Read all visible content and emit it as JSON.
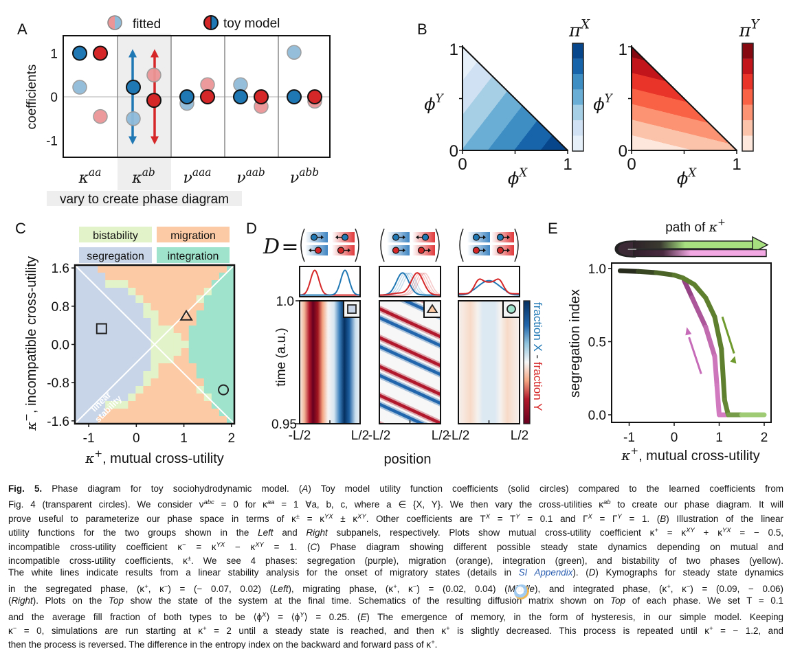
{
  "panels": {
    "A": {
      "label": "A",
      "legend": {
        "fitted": "fitted",
        "toy": "toy model"
      },
      "note": "vary to create phase diagram"
    },
    "B": {
      "label": "B",
      "left": {
        "colorbar_label": {
          "base": "π",
          "sup": "X"
        },
        "xlabel": {
          "base": "ϕ",
          "sup": "X"
        },
        "ylabel": {
          "base": "ϕ",
          "sup": "Y"
        },
        "xticks": [
          "0",
          "1"
        ],
        "yticks": [
          "0",
          "1"
        ]
      },
      "right": {
        "colorbar_label": {
          "base": "π",
          "sup": "Y"
        },
        "xlabel": {
          "base": "ϕ",
          "sup": "X"
        },
        "ylabel": {
          "base": "ϕ",
          "sup": "Y"
        },
        "xticks": [
          "0",
          "1"
        ],
        "yticks": [
          "0",
          "1"
        ]
      },
      "mutual_cross_utility": -0.5,
      "incompatible_cross_utility": 1
    },
    "C": {
      "label": "C"
    },
    "D": {
      "label": "D",
      "equation_lhs": "D",
      "equation_eq": "=",
      "yticks": [
        "1.0",
        "0.95"
      ],
      "ylabel": "time (a.u.)",
      "xticks": [
        "-L/2",
        "L/2"
      ],
      "xlabel": "position",
      "colorbar_label": {
        "x": "fraction X",
        "sep": " - ",
        "y": "fraction Y"
      },
      "matrices": [
        {
          "phase": "segregation",
          "marker": "square",
          "arrows": [
            [
              "X",
              "right"
            ],
            [
              "X",
              "left"
            ],
            [
              "Y",
              "left"
            ],
            [
              "Y",
              "right"
            ]
          ]
        },
        {
          "phase": "migration",
          "marker": "triangle",
          "arrows": [
            [
              "X",
              "right"
            ],
            [
              "X",
              "left"
            ],
            [
              "Y",
              "right"
            ],
            [
              "Y",
              "right"
            ]
          ]
        },
        {
          "phase": "integration",
          "marker": "circle",
          "arrows": [
            [
              "X",
              "right"
            ],
            [
              "X",
              "right"
            ],
            [
              "Y",
              "right"
            ],
            [
              "Y",
              "right"
            ]
          ]
        }
      ]
    },
    "E": {
      "label": "E",
      "banner": {
        "text": "path of ",
        "base": "κ",
        "sup": "+"
      }
    }
  },
  "colors": {
    "blue": "#1f77b4",
    "red": "#d62728",
    "fitted_blue": "#8fbbd9",
    "fitted_red": "#eb9596",
    "blues": [
      "#e6f0f9",
      "#cfe1f2",
      "#a6cee4",
      "#6aaed6",
      "#3e8ec4",
      "#1764ab",
      "#08468b"
    ],
    "reds": [
      "#fde7dd",
      "#fcc3ab",
      "#fc9474",
      "#f96245",
      "#e83429",
      "#c1151b",
      "#860811"
    ],
    "phases": {
      "segregation": "#c8d5e8",
      "migration": "#fccba6",
      "bistability": "#e3f3c9",
      "integration": "#9fe3cc"
    },
    "forward": "#6f9a2e",
    "backward": "#c66bb8"
  },
  "chart_data": [
    {
      "id": "A",
      "type": "scatter",
      "ylabel": "coefficients",
      "yticks": [
        "1",
        "0",
        "-1"
      ],
      "ylim": [
        -1.4,
        1.4
      ],
      "categories": [
        {
          "base": "κ",
          "sup": "aa"
        },
        {
          "base": "κ",
          "sup": "ab"
        },
        {
          "base": "ν",
          "sup": "aaa"
        },
        {
          "base": "ν",
          "sup": "aab"
        },
        {
          "base": "ν",
          "sup": "abb"
        }
      ],
      "highlighted_category": 1,
      "varied_range": [
        -1,
        1
      ],
      "series": [
        {
          "name": "fitted",
          "group": "X",
          "values": [
            0.22,
            -0.5,
            -0.15,
            0.28,
            1.02
          ]
        },
        {
          "name": "fitted",
          "group": "Y",
          "values": [
            -0.45,
            0.5,
            0.28,
            -0.22,
            -0.1
          ]
        },
        {
          "name": "toy model",
          "group": "X",
          "values": [
            1,
            0.22,
            0,
            0,
            0
          ]
        },
        {
          "name": "toy model",
          "group": "Y",
          "values": [
            1,
            -0.08,
            0,
            0,
            0
          ]
        }
      ]
    },
    {
      "id": "C",
      "type": "heatmap",
      "xlabel": {
        "base": "κ",
        "sup": "+",
        "text": ", mutual cross-utility"
      },
      "ylabel": {
        "base": "κ",
        "sup": "−",
        "text": ", incompatible cross-utility"
      },
      "xticks": [
        "-1",
        "0",
        "1",
        "2"
      ],
      "xtick_values": [
        -1,
        0,
        1,
        2
      ],
      "yticks": [
        "1.6",
        "0.8",
        "0.0",
        "-0.8",
        "-1.6"
      ],
      "ytick_values": [
        1.6,
        0.8,
        0,
        -0.8,
        -1.6
      ],
      "xlim": [
        -1.29,
        2.06
      ],
      "ylim": [
        -1.66,
        1.66
      ],
      "legend": [
        {
          "code": "B",
          "label": "bistability"
        },
        {
          "code": "M",
          "label": "migration"
        },
        {
          "code": "S",
          "label": "segregation"
        },
        {
          "code": "I",
          "label": "integration"
        }
      ],
      "phase_grid": [
        "SSSMMMMMMMMMMMMMMMMMI",
        "SSSSMMMMMMMMMMMMMMMII",
        "SSSSBBBMMMMMMMMMMMIII",
        "SSSSSSSBMMMMMMMMMBIII",
        "SSSSSSSSBMMMMMMMBIIII",
        "SSSSSSSSSBMMMMMMMIIII",
        "SSSSSSSSSBBMMMMMIIIII",
        "SSSSSSSSSSBMMMMMIIIII",
        "SSSSSSSSSSBBBMMIIIIII",
        "SSSSSSSSSSBBBBMIIIIII",
        "SSSSSSSSSSBBBBBIIIIII",
        "SSSSSSSSSSBBBBMIIIIII",
        "SSSSSSSSSSBBBMMIIIIII",
        "SSSSSSSSSSBMMMMMIIIII",
        "SSSSSSSSSBBMMMMMIIIII",
        "SSSSSSSSSBMMMMMMMIIII",
        "SSSSSSSSBMMMMMMMBIIII",
        "SSSSSSSBMMMMMMMMMBIII",
        "SSSSBBBMMMMMMMMMMMIII",
        "SSSSMMMMMMMMMMMMMMMII",
        "SSSMMMMMMMMMMMMMMMMMI"
      ],
      "linear_stability_label": [
        "linear",
        "stability"
      ],
      "markers": [
        {
          "shape": "square",
          "x": -0.73,
          "y": 0.33
        },
        {
          "shape": "triangle",
          "x": 1.05,
          "y": 0.6
        },
        {
          "shape": "circle",
          "x": 1.83,
          "y": -0.95
        }
      ]
    },
    {
      "id": "E",
      "type": "line",
      "xlabel": {
        "base": "κ",
        "sup": "+",
        "text": ", mutual cross-utility"
      },
      "ylabel": "segregation index",
      "xticks": [
        "-1",
        "0",
        "1",
        "2"
      ],
      "xtick_values": [
        -1,
        0,
        1,
        2
      ],
      "yticks": [
        "1.0",
        "0.5",
        "0.0"
      ],
      "ytick_values": [
        1,
        0.5,
        0
      ],
      "xlim": [
        -1.4,
        2.1
      ],
      "ylim": [
        -0.05,
        1.04
      ],
      "series": [
        {
          "color": "forward",
          "x": [
            -1.2,
            -0.8,
            -0.4,
            0,
            0.2,
            0.45,
            0.7,
            0.9,
            1.05,
            1.12,
            1.2,
            1.5,
            2.0
          ],
          "y": [
            0.985,
            0.98,
            0.972,
            0.955,
            0.935,
            0.89,
            0.8,
            0.67,
            0.45,
            0.1,
            0,
            0,
            0
          ]
        },
        {
          "color": "backward",
          "x": [
            0.22,
            0.4,
            0.7,
            0.9,
            0.95,
            1.0,
            1.2
          ],
          "y": [
            0.92,
            0.8,
            0.6,
            0.4,
            0.2,
            0,
            0
          ]
        }
      ]
    }
  ],
  "caption": {
    "lines": [
      [
        {
          "t": "Fig. 5.",
          "s": "b"
        },
        {
          "t": "   Phase diagram for toy sociohydrodynamic model. ("
        },
        {
          "t": "A",
          "s": "i"
        },
        {
          "t": ") Toy model utility function coefficients (solid circles) compared to the learned coefficients from"
        }
      ],
      [
        {
          "t": "Fig. 4 (transparent circles). We consider ν"
        },
        {
          "t": "abc",
          "s": "sup"
        },
        {
          "t": " = 0 for κ"
        },
        {
          "t": "aa",
          "s": "sup"
        },
        {
          "t": " = 1 ∀a, b, c, where a ∈ {X, Y}. We then vary the cross-utilities κ"
        },
        {
          "t": "ab",
          "s": "sup"
        },
        {
          "t": " to create our phase diagram. It will"
        }
      ],
      [
        {
          "t": "prove useful to parameterize our phase space in terms of κ"
        },
        {
          "t": "±",
          "s": "sup"
        },
        {
          "t": " = κ"
        },
        {
          "t": "YX",
          "s": "sup"
        },
        {
          "t": " ± κ"
        },
        {
          "t": "XY",
          "s": "sup"
        },
        {
          "t": ". Other coefficients are T"
        },
        {
          "t": "X",
          "s": "sup"
        },
        {
          "t": " = T"
        },
        {
          "t": "Y",
          "s": "sup"
        },
        {
          "t": " = 0.1 and Γ"
        },
        {
          "t": "X",
          "s": "sup"
        },
        {
          "t": " = Γ"
        },
        {
          "t": "Y",
          "s": "sup"
        },
        {
          "t": " = 1. ("
        },
        {
          "t": "B",
          "s": "i"
        },
        {
          "t": ") Illustration of the linear"
        }
      ],
      [
        {
          "t": "utility functions for the two groups shown in the "
        },
        {
          "t": "Left",
          "s": "i"
        },
        {
          "t": " and "
        },
        {
          "t": "Right",
          "s": "i"
        },
        {
          "t": " subpanels, respectively. Plots show mutual cross-utility coefficient κ"
        },
        {
          "t": "+",
          "s": "sup"
        },
        {
          "t": " = κ"
        },
        {
          "t": "XY",
          "s": "sup"
        },
        {
          "t": " + κ"
        },
        {
          "t": "YX",
          "s": "sup"
        },
        {
          "t": " = − 0.5,"
        }
      ],
      [
        {
          "t": "incompatible cross-utility coefficient κ"
        },
        {
          "t": "−",
          "s": "sup"
        },
        {
          "t": " = κ"
        },
        {
          "t": "YX",
          "s": "sup"
        },
        {
          "t": " − κ"
        },
        {
          "t": "XY",
          "s": "sup"
        },
        {
          "t": " = 1. ("
        },
        {
          "t": "C",
          "s": "i"
        },
        {
          "t": ") Phase diagram showing different possible steady state dynamics depending on mutual and"
        }
      ],
      [
        {
          "t": "incompatible cross-utility coefficients, κ"
        },
        {
          "t": "±",
          "s": "sup"
        },
        {
          "t": ". We see 4 phases: segregation (purple), migration (orange), integration (green), and bistability of two phases (yellow)."
        }
      ],
      [
        {
          "t": "The white lines indicate results from a linear stability analysis for the onset of migratory states (details in "
        },
        {
          "t": "SI Appendix",
          "s": "link"
        },
        {
          "t": "). ("
        },
        {
          "t": "D",
          "s": "i"
        },
        {
          "t": ") Kymographs for steady state dynamics"
        }
      ],
      [
        {
          "t": "in the segregated phase, (κ"
        },
        {
          "t": "+",
          "s": "sup"
        },
        {
          "t": ", κ"
        },
        {
          "t": "−",
          "s": "sup"
        },
        {
          "t": ") = (− 0.07, 0.02) ("
        },
        {
          "t": "Left",
          "s": "i"
        },
        {
          "t": "), migrating phase, (κ"
        },
        {
          "t": "+",
          "s": "sup"
        },
        {
          "t": ", κ"
        },
        {
          "t": "−",
          "s": "sup"
        },
        {
          "t": ") = (0.02, 0.04) ("
        },
        {
          "t": "Middle",
          "s": "i"
        },
        {
          "t": "), and integrated phase, (κ"
        },
        {
          "t": "+",
          "s": "sup"
        },
        {
          "t": ", κ"
        },
        {
          "t": "−",
          "s": "sup"
        },
        {
          "t": ") = (0.09, − 0.06)"
        }
      ],
      [
        {
          "t": "("
        },
        {
          "t": "Right",
          "s": "i"
        },
        {
          "t": "). Plots on the "
        },
        {
          "t": "Top",
          "s": "i"
        },
        {
          "t": " show the state of the system at the final time. Schematics of the resulting diffusion matrix shown on "
        },
        {
          "t": "Top",
          "s": "i"
        },
        {
          "t": " of each phase. We set T = 0.1"
        }
      ],
      [
        {
          "t": "and the average fill fraction of both types to be ⟨ϕ"
        },
        {
          "t": "X",
          "s": "sup"
        },
        {
          "t": "⟩ = ⟨ϕ"
        },
        {
          "t": "Y",
          "s": "sup"
        },
        {
          "t": "⟩ = 0.25. ("
        },
        {
          "t": "E",
          "s": "i"
        },
        {
          "t": ") The emergence of memory, in the form of hysteresis, in our simple model. Keeping"
        }
      ],
      [
        {
          "t": "κ"
        },
        {
          "t": "−",
          "s": "sup"
        },
        {
          "t": " = 0, simulations are run starting at κ"
        },
        {
          "t": "+",
          "s": "sup"
        },
        {
          "t": " = 2 until a steady state is reached, and then κ"
        },
        {
          "t": "+",
          "s": "sup"
        },
        {
          "t": " is slightly decreased. This process is repeated until κ"
        },
        {
          "t": "+",
          "s": "sup"
        },
        {
          "t": " = − 1.2, and"
        }
      ],
      [
        {
          "t": "then the process is reversed. The difference in the entropy index on the backward and forward pass of κ"
        },
        {
          "t": "+",
          "s": "sup"
        },
        {
          "t": "."
        }
      ]
    ]
  }
}
